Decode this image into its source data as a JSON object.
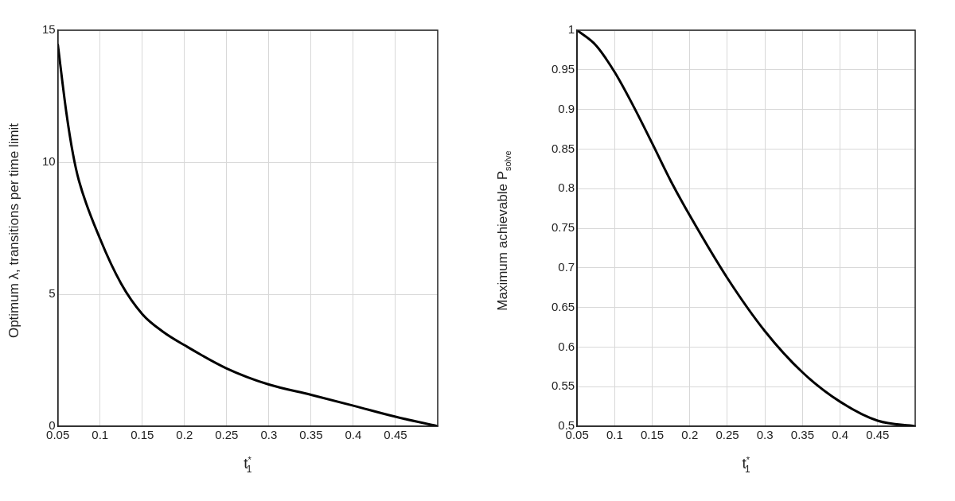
{
  "chart_data": [
    {
      "type": "line",
      "xlabel": "t$^{*}$$_{1}$",
      "ylabel": "Optimum λ, transitions per time limit",
      "x": [
        0.05,
        0.06,
        0.068,
        0.075,
        0.1,
        0.125,
        0.15,
        0.175,
        0.2,
        0.25,
        0.3,
        0.35,
        0.4,
        0.45,
        0.5
      ],
      "series": [
        {
          "color": "#000000",
          "values": [
            14.45,
            11.9,
            10.3,
            9.3,
            7.1,
            5.4,
            4.25,
            3.57,
            3.07,
            2.19,
            1.58,
            1.19,
            0.78,
            0.36,
            0
          ]
        }
      ],
      "xlim": [
        0.05,
        0.5
      ],
      "xticks": [
        0.05,
        0.1,
        0.15,
        0.2,
        0.25,
        0.3,
        0.35,
        0.4,
        0.45
      ],
      "ylim": [
        0,
        15
      ],
      "yticks": [
        0,
        5,
        10,
        15
      ],
      "grid": true,
      "legend": false,
      "marker": "none",
      "line_style": "solid"
    },
    {
      "type": "line",
      "xlabel": "t$^{*}$$_{1}$",
      "ylabel": "Maximum achievable P$_{solve}$",
      "x": [
        0.05,
        0.075,
        0.1,
        0.125,
        0.15,
        0.175,
        0.2,
        0.25,
        0.3,
        0.35,
        0.4,
        0.45,
        0.5
      ],
      "series": [
        {
          "color": "#000000",
          "values": [
            1,
            0.981,
            0.947,
            0.904,
            0.857,
            0.809,
            0.766,
            0.687,
            0.62,
            0.568,
            0.531,
            0.507,
            0.5
          ]
        }
      ],
      "xlim": [
        0.05,
        0.5
      ],
      "xticks": [
        0.05,
        0.1,
        0.15,
        0.2,
        0.25,
        0.3,
        0.35,
        0.4,
        0.45
      ],
      "ylim": [
        0.5,
        1
      ],
      "yticks": [
        0.5,
        0.55,
        0.6,
        0.65,
        0.7,
        0.75,
        0.8,
        0.85,
        0.9,
        0.95,
        1
      ],
      "grid": true,
      "legend": false,
      "marker": "none",
      "line_style": "solid"
    }
  ]
}
